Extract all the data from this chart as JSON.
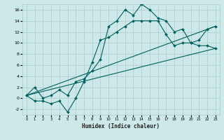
{
  "xlabel": "Humidex (Indice chaleur)",
  "bg_color": "#cce8e8",
  "grid_color": "#aacccc",
  "line_color": "#006060",
  "xlim": [
    -0.5,
    23.5
  ],
  "ylim": [
    -3.0,
    17.0
  ],
  "yticks": [
    -2,
    0,
    2,
    4,
    6,
    8,
    10,
    12,
    14,
    16
  ],
  "xticks": [
    0,
    1,
    2,
    3,
    4,
    5,
    6,
    7,
    8,
    9,
    10,
    11,
    12,
    13,
    14,
    15,
    16,
    17,
    18,
    19,
    20,
    21,
    22,
    23
  ],
  "series1_x": [
    0,
    1,
    2,
    3,
    4,
    5,
    6,
    7,
    8,
    9,
    10,
    11,
    12,
    13,
    14,
    15,
    16,
    17,
    18,
    19,
    20,
    21,
    22,
    23
  ],
  "series1_y": [
    0.5,
    -0.5,
    -0.5,
    -1.0,
    -0.5,
    -2.5,
    0.0,
    3.0,
    6.5,
    10.5,
    11.0,
    12.0,
    13.0,
    14.0,
    14.0,
    14.0,
    14.0,
    11.5,
    9.5,
    10.0,
    10.0,
    9.5,
    9.5,
    9.0
  ],
  "series2_x": [
    0,
    1,
    2,
    3,
    4,
    5,
    6,
    7,
    8,
    9,
    10,
    11,
    12,
    13,
    14,
    15,
    16,
    17,
    18,
    19,
    20,
    21,
    22,
    23
  ],
  "series2_y": [
    0.5,
    2.0,
    0.0,
    0.5,
    1.5,
    0.5,
    3.0,
    3.5,
    5.0,
    7.0,
    13.0,
    14.0,
    16.0,
    15.0,
    17.0,
    16.0,
    14.5,
    14.0,
    12.0,
    12.5,
    10.0,
    10.5,
    12.5,
    13.0
  ],
  "series3_x": [
    0,
    23
  ],
  "series3_y": [
    0.5,
    9.0
  ],
  "series4_x": [
    0,
    23
  ],
  "series4_y": [
    0.5,
    13.0
  ],
  "markersize": 2.0,
  "linewidth": 0.8
}
